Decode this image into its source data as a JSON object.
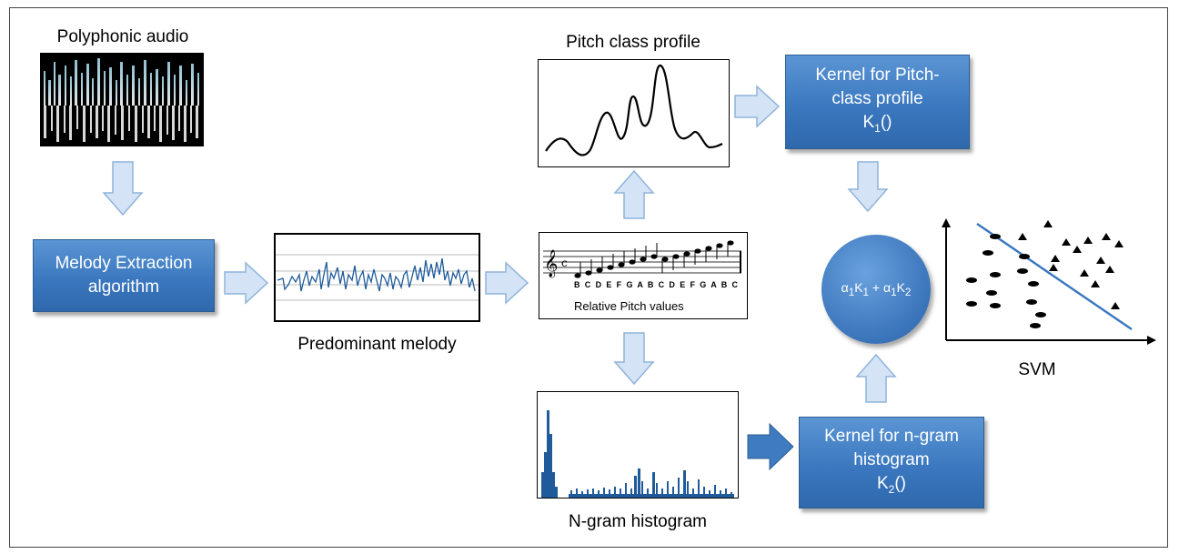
{
  "labels": {
    "polyphonic_audio": "Polyphonic audio",
    "predominant_melody": "Predominant melody",
    "pitch_class_profile": "Pitch class profile",
    "ngram_histogram": "N-gram histogram",
    "svm": "SVM",
    "relative_pitch_values": "Relative Pitch values",
    "note_letters": "B C D E F G A B C D E F G A B C"
  },
  "boxes": {
    "melody_extraction": {
      "line1": "Melody Extraction",
      "line2": "algorithm"
    },
    "kernel_pcp": {
      "line1": "Kernel for Pitch-",
      "line2": "class profile",
      "kernel_letter": "K",
      "kernel_sub": "1",
      "kernel_tail": "()"
    },
    "kernel_ngram": {
      "line1": "Kernel for n-gram",
      "line2": "histogram",
      "kernel_letter": "K",
      "kernel_sub": "2",
      "kernel_tail": "()"
    }
  },
  "combination": {
    "a1": "α",
    "s1": "1",
    "k1": "K",
    "s1b": "1",
    "plus": " + ",
    "a2": "α",
    "s2": "1",
    "k2": "K",
    "s2b": "2"
  },
  "colors": {
    "box_blue": "#3b78bf",
    "arrow_fill": "#d4e4f6",
    "arrow_stroke": "#8fb3da",
    "dark_arrow": "#3f7bc0"
  }
}
